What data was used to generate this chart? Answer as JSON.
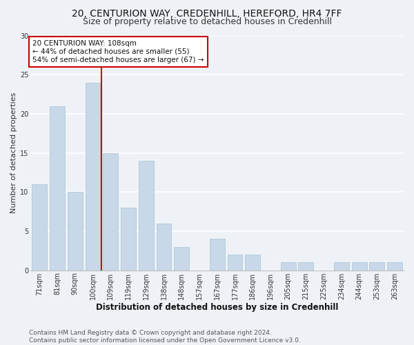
{
  "title1": "20, CENTURION WAY, CREDENHILL, HEREFORD, HR4 7FF",
  "title2": "Size of property relative to detached houses in Credenhill",
  "xlabel": "Distribution of detached houses by size in Credenhill",
  "ylabel": "Number of detached properties",
  "categories": [
    "71sqm",
    "81sqm",
    "90sqm",
    "100sqm",
    "109sqm",
    "119sqm",
    "129sqm",
    "138sqm",
    "148sqm",
    "157sqm",
    "167sqm",
    "177sqm",
    "186sqm",
    "196sqm",
    "205sqm",
    "215sqm",
    "225sqm",
    "234sqm",
    "244sqm",
    "253sqm",
    "263sqm"
  ],
  "values": [
    11,
    21,
    10,
    24,
    15,
    8,
    14,
    6,
    3,
    0,
    4,
    2,
    2,
    0,
    1,
    1,
    0,
    1,
    1,
    1,
    1
  ],
  "bar_color": "#c8d8e8",
  "bar_edge_color": "#b0c8d8",
  "vline_color": "#cc0000",
  "annotation_text": "20 CENTURION WAY: 108sqm\n← 44% of detached houses are smaller (55)\n54% of semi-detached houses are larger (67) →",
  "annotation_box_color": "#ffffff",
  "annotation_box_edge": "#cc0000",
  "ylim": [
    0,
    30
  ],
  "yticks": [
    0,
    5,
    10,
    15,
    20,
    25,
    30
  ],
  "footer": "Contains HM Land Registry data © Crown copyright and database right 2024.\nContains public sector information licensed under the Open Government Licence v3.0.",
  "bg_color": "#eef2f7",
  "plot_bg_color": "#eef2f7",
  "grid_color": "#ffffff",
  "title1_fontsize": 10,
  "title2_fontsize": 9,
  "xlabel_fontsize": 8.5,
  "ylabel_fontsize": 8,
  "tick_fontsize": 7,
  "footer_fontsize": 6.5,
  "annotation_fontsize": 7.5
}
